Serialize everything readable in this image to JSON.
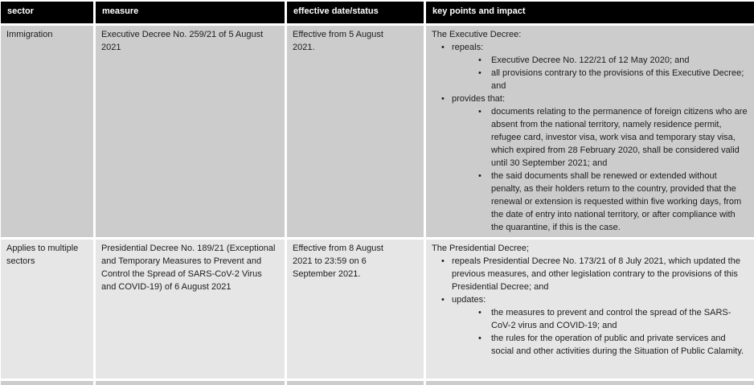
{
  "colors": {
    "header_bg": "#000000",
    "header_text": "#ffffff",
    "row_1_bg": "#cccccc",
    "row_2_bg": "#e6e6e6",
    "body_text": "#1c1c1c",
    "cell_gap": "#ffffff"
  },
  "icons": {
    "bullet": "•"
  },
  "table": {
    "columns": [
      "sector",
      "measure",
      "effective date/status",
      "key points and impact"
    ],
    "rows": [
      {
        "sector": "Immigration",
        "measure": "Executive Decree No. 259/21 of 5 August 2021",
        "effective_date_status": "Effective from 5 August 2021.",
        "key_points": [
          {
            "level": 0,
            "text": "The Executive Decree:"
          },
          {
            "level": 1,
            "text": "repeals:"
          },
          {
            "level": 2,
            "text": "Executive Decree No. 122/21 of 12 May 2020; and"
          },
          {
            "level": 2,
            "text": "all provisions contrary to the provisions of this Executive Decree; and"
          },
          {
            "level": 1,
            "text": "provides that:"
          },
          {
            "level": 2,
            "text": "documents relating to the permanence of foreign citizens who are absent from the national territory, namely residence permit, refugee card, investor visa, work visa and temporary stay visa, which expired from 28 February 2020, shall be considered valid until 30 September 2021; and"
          },
          {
            "level": 2,
            "text": "the said documents shall be renewed or extended without penalty, as their holders return to the country, provided that the renewal or extension is requested within five working days, from the date of entry into national territory, or after compliance with the quarantine, if this is the case."
          }
        ]
      },
      {
        "sector": "Applies to multiple sectors",
        "measure": "Presidential Decree No. 189/21 (Exceptional and Temporary Measures to Prevent and Control the Spread of SARS-CoV-2 Virus and COVID-19) of 6 August 2021",
        "effective_date_status": "Effective from 8 August 2021 to 23:59 on 6 September 2021.",
        "key_points": [
          {
            "level": 0,
            "text": "The Presidential Decree;"
          },
          {
            "level": 1,
            "text": "repeals Presidential Decree No. 173/21 of 8 July 2021, which updated the previous measures, and other legislation contrary to the provisions of this Presidential Decree; and"
          },
          {
            "level": 1,
            "text": "updates:"
          },
          {
            "level": 2,
            "text": "the measures to prevent and control the spread of the SARS-CoV-2 virus and COVID-19; and"
          },
          {
            "level": 2,
            "text": "the rules for the operation of public and private services and social and other activities during the Situation of Public Calamity."
          }
        ]
      }
    ]
  }
}
